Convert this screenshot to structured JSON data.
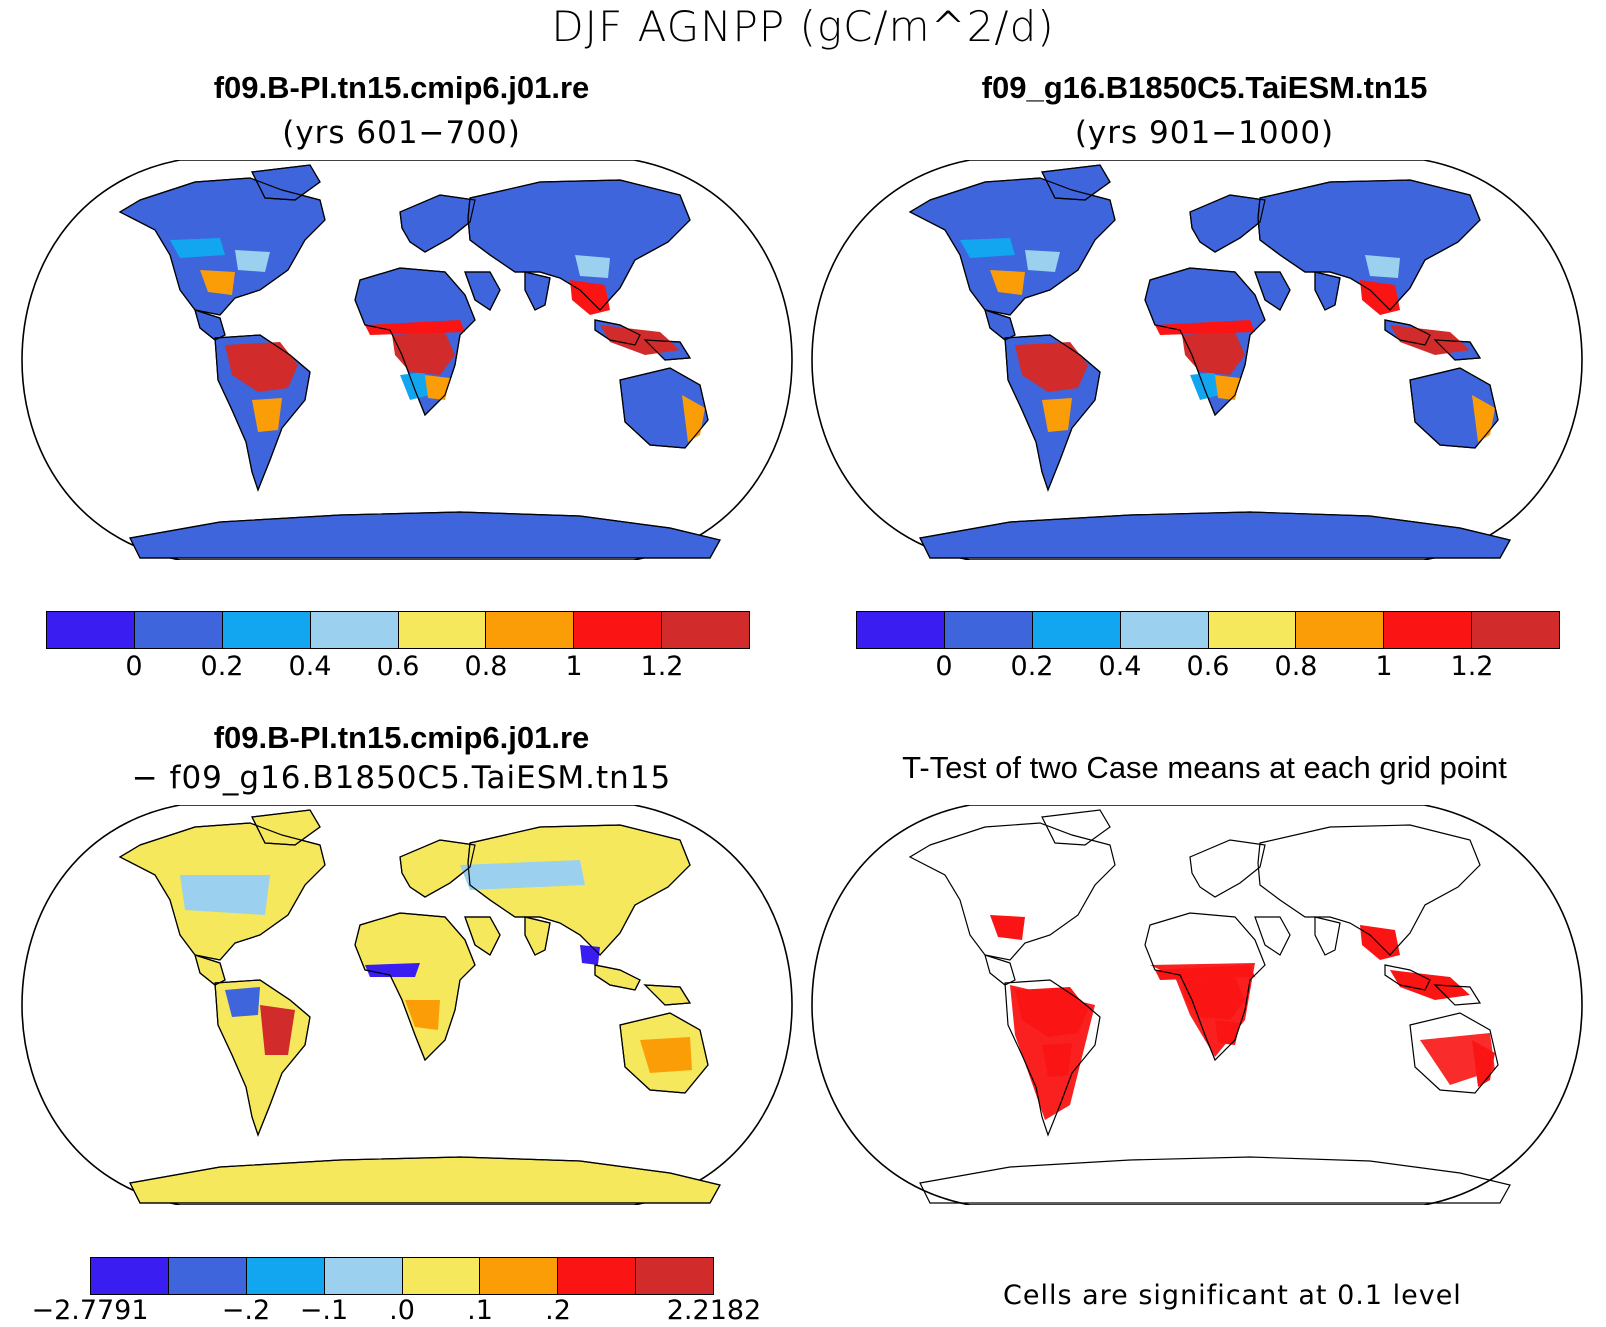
{
  "figure": {
    "suptitle": "DJF AGNPP (gC/m^2/d)"
  },
  "panels": {
    "top_left": {
      "title": "f09.B-PI.tn15.cmip6.j01.re",
      "subtitle": "(yrs 601−700)"
    },
    "top_right": {
      "title": "f09_g16.B1850C5.TaiESM.tn15",
      "subtitle": "(yrs 901−1000)"
    },
    "bottom_left": {
      "title": "f09.B-PI.tn15.cmip6.j01.re",
      "subtitle": "− f09_g16.B1850C5.TaiESM.tn15"
    },
    "bottom_right": {
      "title": "T-Test of two Case means at each grid point",
      "note": "Cells are significant at 0.1 level"
    }
  },
  "colorbars": {
    "absolute": {
      "colors": [
        "#3a1df0",
        "#3e65dc",
        "#13a6f0",
        "#9bd0ee",
        "#f6e85c",
        "#fb9d07",
        "#fa1414",
        "#d12b2b"
      ],
      "labels": [
        "0",
        "0.2",
        "0.4",
        "0.6",
        "0.8",
        "1",
        "1.2"
      ]
    },
    "difference": {
      "colors": [
        "#3a1df0",
        "#3e65dc",
        "#13a6f0",
        "#9bd0ee",
        "#f6e85c",
        "#fb9d07",
        "#fa1414",
        "#d12b2b"
      ],
      "labels": [
        "−2.7791",
        "−.2",
        "−.1",
        ".0",
        ".1",
        ".2",
        "2.2182"
      ]
    }
  },
  "styles": {
    "ocean": "#ffffff",
    "base_land": "#3e65dc",
    "diff_land": "#f6e85c",
    "sig_color": "#fa1414",
    "coast": "#000000"
  }
}
